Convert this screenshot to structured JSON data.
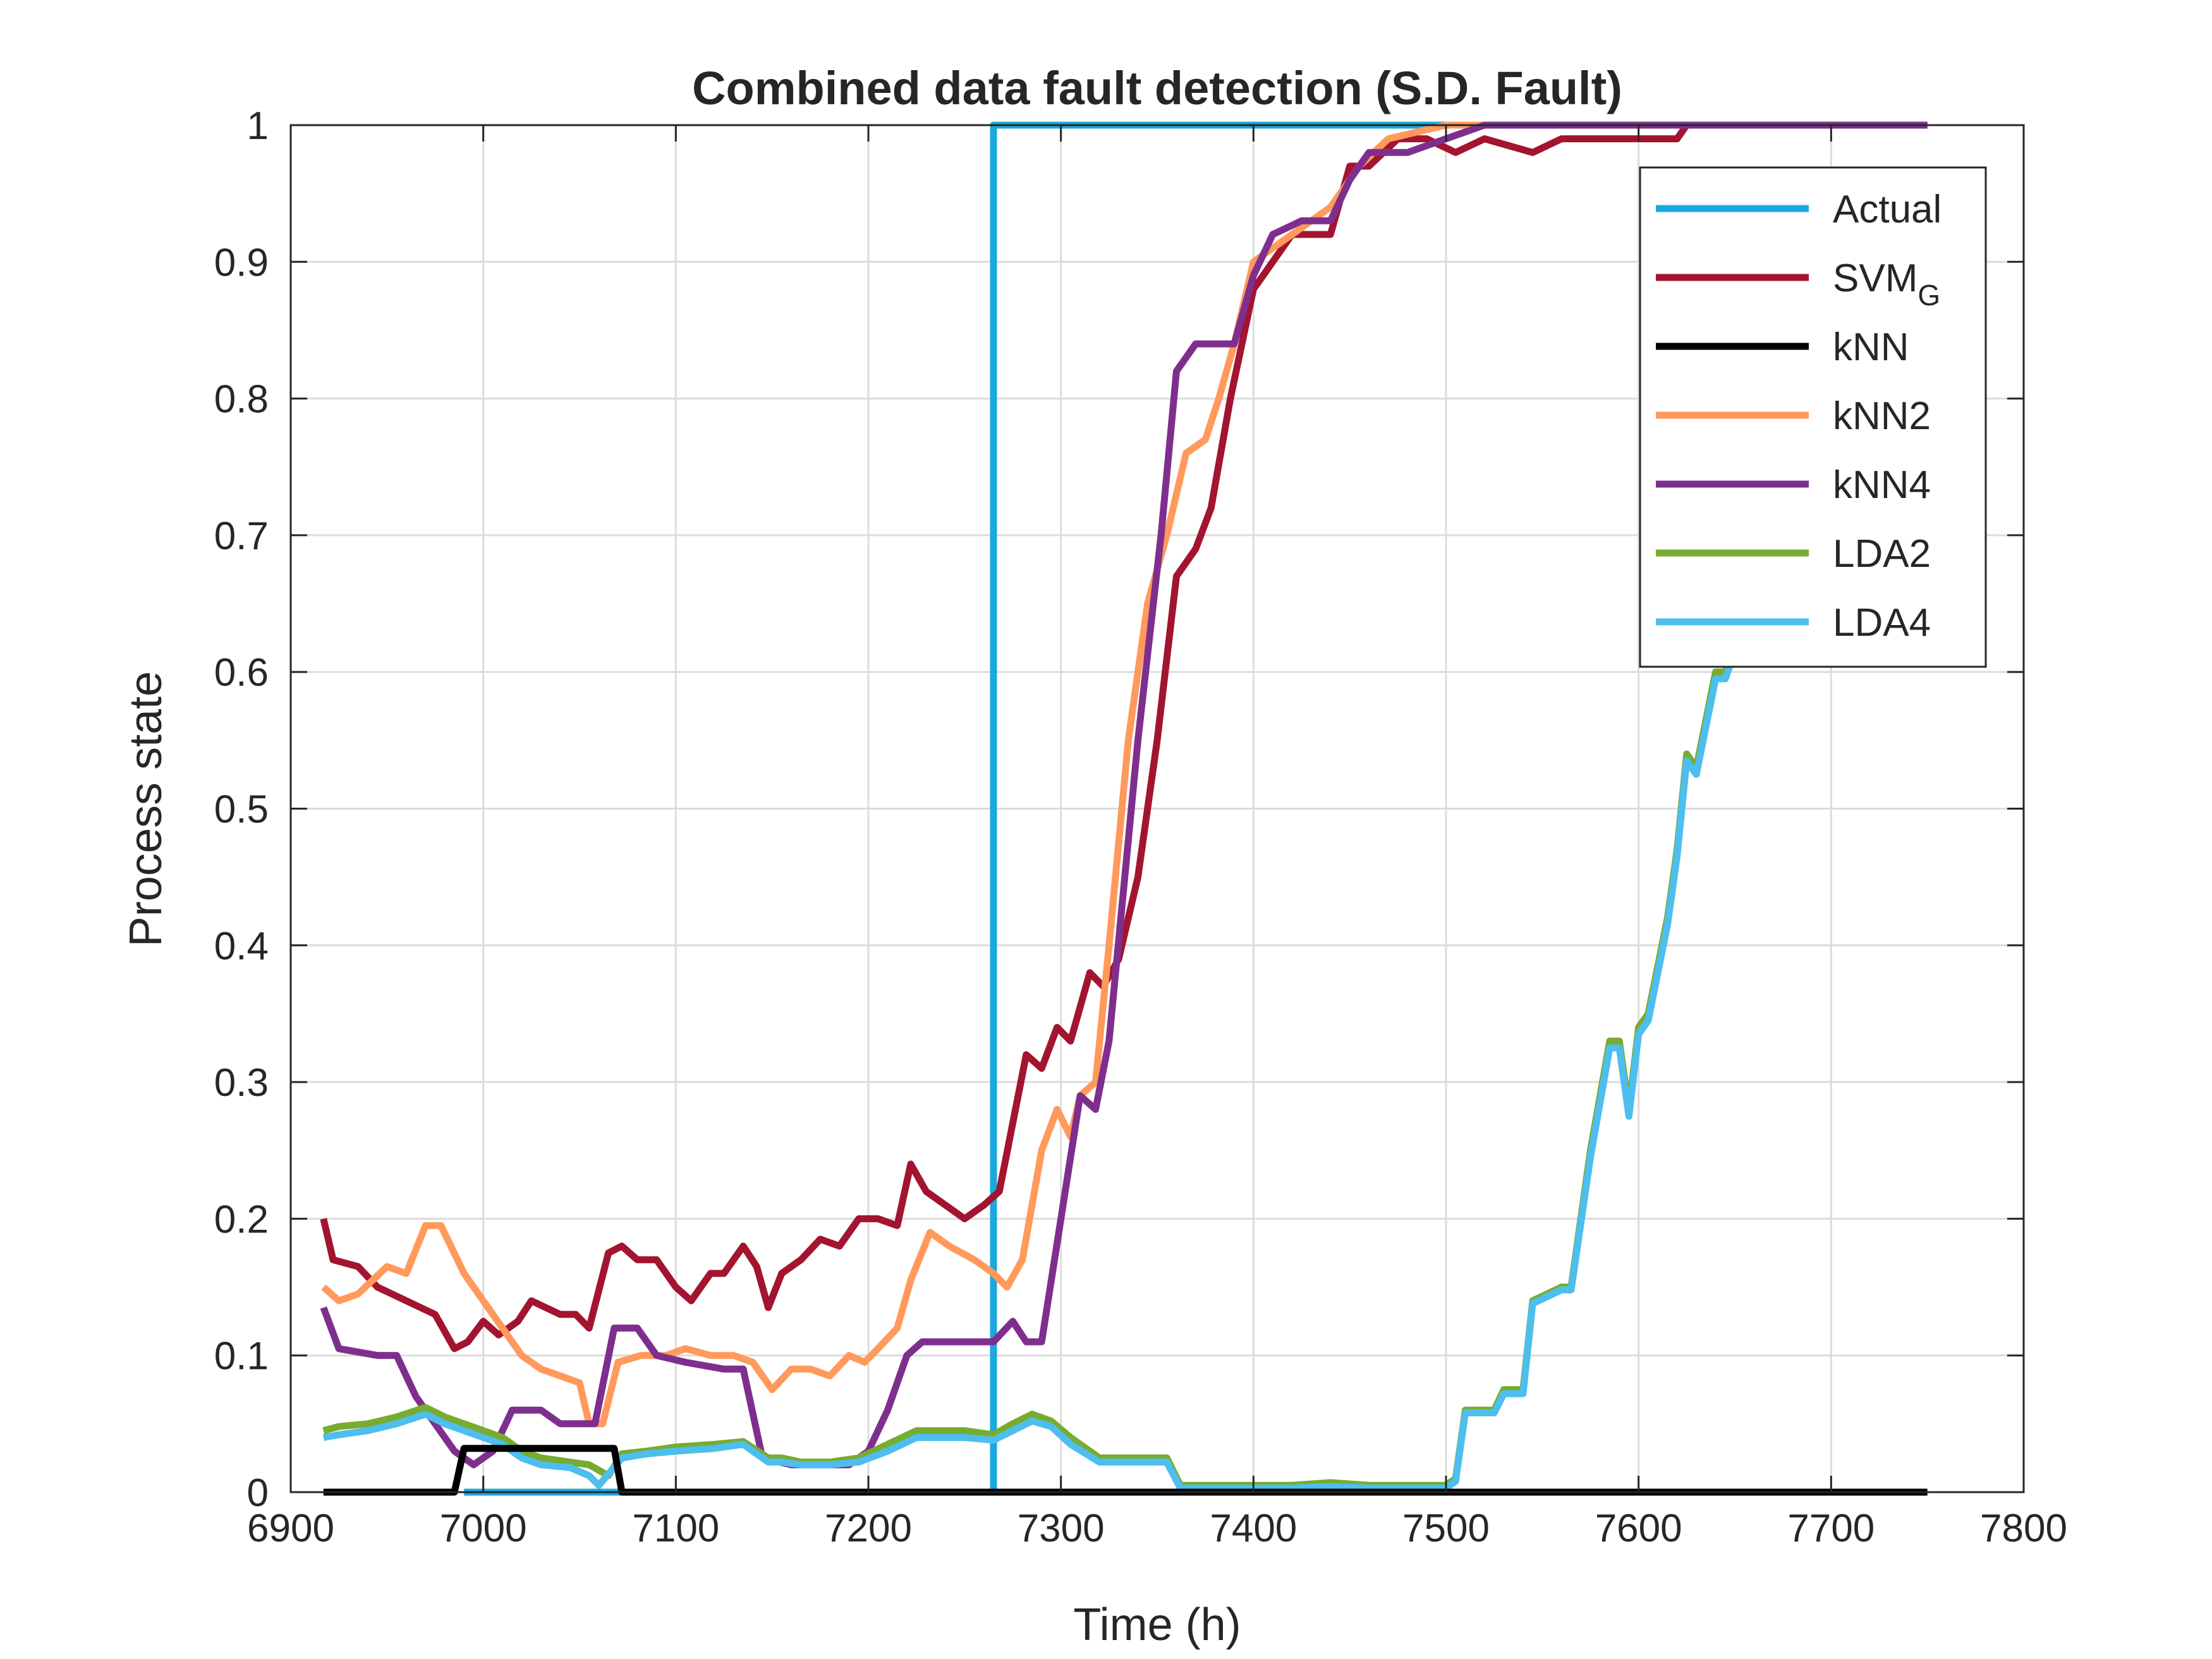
{
  "chart_data": {
    "type": "line",
    "title": "Combined data fault detection (S.D. Fault)",
    "xlabel": "Time (h)",
    "ylabel": "Process state",
    "xlim": [
      6900,
      7800
    ],
    "ylim": [
      0,
      1
    ],
    "xticks": [
      "6900",
      "7000",
      "7100",
      "7200",
      "7300",
      "7400",
      "7500",
      "7600",
      "7700",
      "7800"
    ],
    "yticks": [
      "0",
      "0.1",
      "0.2",
      "0.3",
      "0.4",
      "0.5",
      "0.6",
      "0.7",
      "0.8",
      "0.9",
      "1"
    ],
    "xtick_values": [
      6900,
      7000,
      7100,
      7200,
      7300,
      7400,
      7500,
      7600,
      7700,
      7800
    ],
    "ytick_values": [
      0,
      0.1,
      0.2,
      0.3,
      0.4,
      0.5,
      0.6,
      0.7,
      0.8,
      0.9,
      1
    ],
    "grid": true,
    "legend_position": "top-right",
    "series": [
      {
        "name": "Actual",
        "legend_main": "Actual",
        "legend_sub": "",
        "color": "#1BA8DF",
        "x": [
          6990,
          7070,
          7070,
          7265,
          7265,
          7750
        ],
        "y": [
          0,
          0,
          0,
          0,
          1,
          1
        ]
      },
      {
        "name": "SVM_G",
        "legend_main": "SVM",
        "legend_sub": "G",
        "color": "#A2142F",
        "x": [
          6917,
          6922,
          6935,
          6945,
          6960,
          6975,
          6985,
          6992,
          7000,
          7008,
          7018,
          7025,
          7040,
          7048,
          7055,
          7065,
          7072,
          7080,
          7090,
          7100,
          7108,
          7118,
          7125,
          7135,
          7142,
          7148,
          7155,
          7165,
          7175,
          7185,
          7195,
          7205,
          7215,
          7222,
          7230,
          7240,
          7250,
          7260,
          7268,
          7275,
          7282,
          7290,
          7298,
          7305,
          7315,
          7322,
          7330,
          7340,
          7350,
          7360,
          7370,
          7378,
          7388,
          7400,
          7410,
          7420,
          7440,
          7450,
          7460,
          7475,
          7490,
          7505,
          7520,
          7545,
          7560,
          7580,
          7600,
          7620,
          7625,
          7750
        ],
        "y": [
          0.2,
          0.17,
          0.165,
          0.15,
          0.14,
          0.13,
          0.105,
          0.11,
          0.125,
          0.115,
          0.125,
          0.14,
          0.13,
          0.13,
          0.12,
          0.175,
          0.18,
          0.17,
          0.17,
          0.15,
          0.14,
          0.16,
          0.16,
          0.18,
          0.165,
          0.135,
          0.16,
          0.17,
          0.185,
          0.18,
          0.2,
          0.2,
          0.195,
          0.24,
          0.22,
          0.21,
          0.2,
          0.21,
          0.22,
          0.27,
          0.32,
          0.31,
          0.34,
          0.33,
          0.38,
          0.37,
          0.39,
          0.45,
          0.55,
          0.67,
          0.69,
          0.72,
          0.8,
          0.88,
          0.9,
          0.92,
          0.92,
          0.97,
          0.97,
          0.99,
          0.99,
          0.98,
          0.99,
          0.98,
          0.99,
          0.99,
          0.99,
          0.99,
          1.0,
          1.0
        ]
      },
      {
        "name": "kNN",
        "legend_main": "kNN",
        "legend_sub": "",
        "color": "#000000",
        "x": [
          6917,
          6985,
          6990,
          7068,
          7072,
          7750
        ],
        "y": [
          0,
          0,
          0.032,
          0.032,
          0,
          0
        ]
      },
      {
        "name": "kNN2",
        "legend_main": "kNN2",
        "legend_sub": "",
        "color": "#FF9A5C",
        "x": [
          6917,
          6925,
          6935,
          6950,
          6960,
          6970,
          6978,
          6990,
          7000,
          7010,
          7020,
          7030,
          7040,
          7050,
          7055,
          7062,
          7070,
          7082,
          7095,
          7105,
          7118,
          7130,
          7140,
          7150,
          7160,
          7170,
          7180,
          7190,
          7198,
          7205,
          7215,
          7222,
          7232,
          7242,
          7255,
          7265,
          7272,
          7280,
          7290,
          7298,
          7305,
          7310,
          7318,
          7325,
          7335,
          7345,
          7355,
          7365,
          7375,
          7382,
          7390,
          7400,
          7420,
          7440,
          7455,
          7470,
          7485,
          7500,
          7750
        ],
        "y": [
          0.15,
          0.14,
          0.145,
          0.165,
          0.16,
          0.195,
          0.195,
          0.16,
          0.14,
          0.12,
          0.1,
          0.09,
          0.085,
          0.08,
          0.05,
          0.05,
          0.095,
          0.1,
          0.1,
          0.105,
          0.1,
          0.1,
          0.095,
          0.075,
          0.09,
          0.09,
          0.085,
          0.1,
          0.095,
          0.105,
          0.12,
          0.155,
          0.19,
          0.18,
          0.17,
          0.16,
          0.15,
          0.17,
          0.25,
          0.28,
          0.26,
          0.29,
          0.3,
          0.4,
          0.55,
          0.65,
          0.7,
          0.76,
          0.77,
          0.8,
          0.84,
          0.9,
          0.92,
          0.94,
          0.97,
          0.99,
          0.995,
          1.0,
          1.0
        ]
      },
      {
        "name": "kNN4",
        "legend_main": "kNN4",
        "legend_sub": "",
        "color": "#7E2F8E",
        "x": [
          6917,
          6925,
          6945,
          6955,
          6965,
          6975,
          6985,
          6995,
          7005,
          7015,
          7030,
          7040,
          7048,
          7058,
          7068,
          7080,
          7090,
          7105,
          7125,
          7135,
          7145,
          7160,
          7170,
          7180,
          7190,
          7200,
          7210,
          7220,
          7228,
          7240,
          7255,
          7265,
          7275,
          7282,
          7290,
          7300,
          7310,
          7318,
          7325,
          7340,
          7352,
          7360,
          7370,
          7380,
          7390,
          7400,
          7410,
          7425,
          7440,
          7450,
          7460,
          7480,
          7500,
          7520,
          7750
        ],
        "y": [
          0.135,
          0.105,
          0.1,
          0.1,
          0.07,
          0.05,
          0.03,
          0.02,
          0.03,
          0.06,
          0.06,
          0.05,
          0.05,
          0.05,
          0.12,
          0.12,
          0.1,
          0.095,
          0.09,
          0.09,
          0.025,
          0.02,
          0.02,
          0.02,
          0.02,
          0.03,
          0.06,
          0.1,
          0.11,
          0.11,
          0.11,
          0.11,
          0.125,
          0.11,
          0.11,
          0.2,
          0.29,
          0.28,
          0.33,
          0.55,
          0.7,
          0.82,
          0.84,
          0.84,
          0.84,
          0.89,
          0.92,
          0.93,
          0.93,
          0.96,
          0.98,
          0.98,
          0.99,
          1.0,
          1.0
        ]
      },
      {
        "name": "LDA2",
        "legend_main": "LDA2",
        "legend_sub": "",
        "color": "#77AC30",
        "x": [
          6917,
          6925,
          6940,
          6955,
          6970,
          6980,
          6990,
          7000,
          7010,
          7020,
          7030,
          7045,
          7055,
          7065,
          7072,
          7085,
          7100,
          7120,
          7135,
          7148,
          7155,
          7165,
          7180,
          7195,
          7210,
          7225,
          7235,
          7250,
          7265,
          7275,
          7285,
          7295,
          7305,
          7320,
          7340,
          7355,
          7362,
          7380,
          7400,
          7420,
          7440,
          7460,
          7480,
          7500,
          7505,
          7510,
          7515,
          7525,
          7530,
          7540,
          7545,
          7560,
          7565,
          7575,
          7585,
          7590,
          7595,
          7600,
          7605,
          7615,
          7620,
          7625,
          7630,
          7640,
          7645,
          7650
        ],
        "y": [
          0.045,
          0.048,
          0.05,
          0.055,
          0.062,
          0.055,
          0.05,
          0.045,
          0.04,
          0.03,
          0.025,
          0.022,
          0.02,
          0.012,
          0.028,
          0.03,
          0.033,
          0.035,
          0.037,
          0.025,
          0.025,
          0.022,
          0.022,
          0.025,
          0.035,
          0.045,
          0.045,
          0.045,
          0.042,
          0.05,
          0.057,
          0.052,
          0.04,
          0.025,
          0.025,
          0.025,
          0.005,
          0.005,
          0.005,
          0.005,
          0.007,
          0.005,
          0.005,
          0.005,
          0.01,
          0.06,
          0.06,
          0.06,
          0.075,
          0.075,
          0.14,
          0.15,
          0.15,
          0.25,
          0.33,
          0.33,
          0.28,
          0.34,
          0.35,
          0.42,
          0.47,
          0.54,
          0.53,
          0.6,
          0.6,
          0.62
        ]
      },
      {
        "name": "LDA4",
        "legend_main": "LDA4",
        "legend_sub": "",
        "color": "#4DBEEE",
        "x": [
          6917,
          6925,
          6940,
          6955,
          6970,
          6980,
          6990,
          7000,
          7010,
          7020,
          7030,
          7045,
          7055,
          7060,
          7072,
          7085,
          7100,
          7120,
          7135,
          7148,
          7155,
          7165,
          7180,
          7195,
          7210,
          7225,
          7235,
          7250,
          7265,
          7275,
          7285,
          7295,
          7305,
          7320,
          7340,
          7355,
          7362,
          7380,
          7400,
          7420,
          7440,
          7460,
          7480,
          7500,
          7505,
          7510,
          7515,
          7525,
          7530,
          7540,
          7545,
          7560,
          7565,
          7575,
          7585,
          7590,
          7595,
          7600,
          7605,
          7615,
          7620,
          7625,
          7630,
          7640,
          7645,
          7650
        ],
        "y": [
          0.04,
          0.042,
          0.045,
          0.05,
          0.057,
          0.05,
          0.045,
          0.04,
          0.035,
          0.025,
          0.02,
          0.018,
          0.012,
          0.005,
          0.025,
          0.028,
          0.03,
          0.032,
          0.035,
          0.022,
          0.022,
          0.02,
          0.02,
          0.022,
          0.03,
          0.04,
          0.04,
          0.04,
          0.038,
          0.045,
          0.052,
          0.048,
          0.035,
          0.022,
          0.022,
          0.022,
          0.003,
          0.003,
          0.003,
          0.003,
          0.004,
          0.003,
          0.003,
          0.003,
          0.008,
          0.058,
          0.058,
          0.058,
          0.072,
          0.072,
          0.138,
          0.148,
          0.148,
          0.245,
          0.325,
          0.325,
          0.275,
          0.335,
          0.345,
          0.415,
          0.465,
          0.535,
          0.525,
          0.595,
          0.595,
          0.615
        ]
      }
    ]
  }
}
